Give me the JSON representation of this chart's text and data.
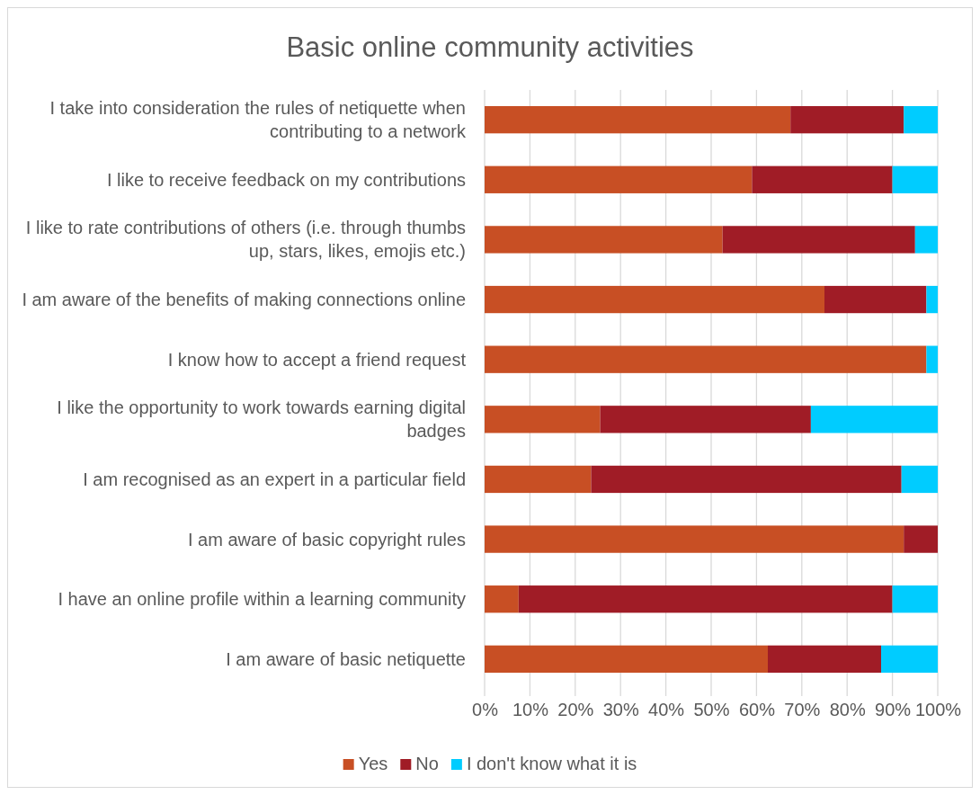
{
  "chart_data": {
    "type": "bar",
    "orientation": "horizontal",
    "stacked": true,
    "title": "Basic online community activities",
    "categories": [
      "I take into consideration the rules of netiquette when contributing to a network",
      "I like to receive feedback on my contributions",
      "I like to rate contributions of others (i.e. through thumbs up, stars, likes, emojis etc.)",
      "I am aware of the benefits of making connections online",
      "I know how to accept a friend request",
      "I like the opportunity to work towards earning digital badges",
      "I am recognised as an expert in a particular field",
      "I am aware of basic copyright rules",
      "I have an online profile within a learning community",
      "I am aware of basic netiquette"
    ],
    "series": [
      {
        "name": "Yes",
        "color": "#c84f24",
        "values": [
          67.5,
          59,
          52.5,
          75,
          97.5,
          25.5,
          23.5,
          92.5,
          7.5,
          62.5
        ]
      },
      {
        "name": "No",
        "color": "#a01c26",
        "values": [
          25,
          31,
          42.5,
          22.5,
          0,
          46.5,
          68.5,
          7.5,
          82.5,
          25
        ]
      },
      {
        "name": "I don't know what it is",
        "color": "#00ccff",
        "values": [
          7.5,
          10,
          5,
          2.5,
          2.5,
          28,
          8,
          0,
          10,
          12.5
        ]
      }
    ],
    "xlim": [
      0,
      100
    ],
    "xticks": [
      {
        "value": 0,
        "label": "0%"
      },
      {
        "value": 10,
        "label": "10%"
      },
      {
        "value": 20,
        "label": "20%"
      },
      {
        "value": 30,
        "label": "30%"
      },
      {
        "value": 40,
        "label": "40%"
      },
      {
        "value": 50,
        "label": "50%"
      },
      {
        "value": 60,
        "label": "60%"
      },
      {
        "value": 70,
        "label": "70%"
      },
      {
        "value": 80,
        "label": "80%"
      },
      {
        "value": 90,
        "label": "90%"
      },
      {
        "value": 100,
        "label": "100%"
      }
    ],
    "grid": "x",
    "legend": "bottom"
  }
}
